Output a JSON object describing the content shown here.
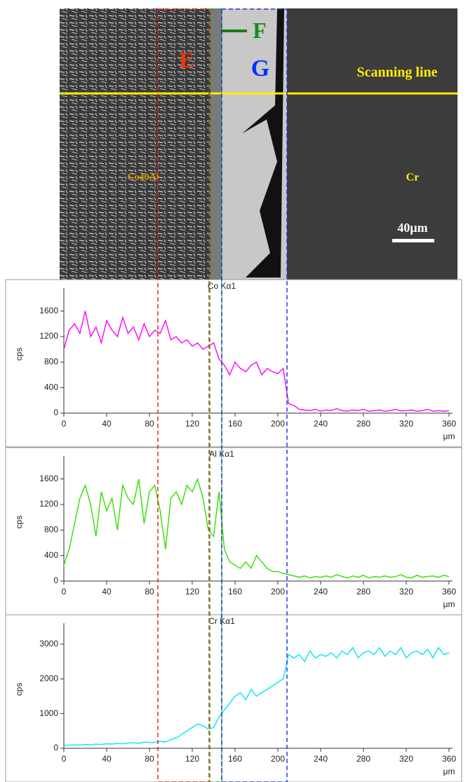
{
  "micrograph": {
    "labels": {
      "E": "E",
      "F": "F",
      "G": "G",
      "scan": "Scanning line",
      "alloy": "Co40Al",
      "cr": "Cr",
      "scale": "40μm"
    }
  },
  "chart_data": [
    {
      "type": "line",
      "title": "Co Kα1",
      "x_label": "μm",
      "y_label": "cps",
      "color": "#ff00ff",
      "x": [
        0,
        5,
        10,
        15,
        20,
        25,
        30,
        35,
        40,
        45,
        50,
        55,
        60,
        65,
        70,
        75,
        80,
        85,
        90,
        95,
        100,
        105,
        110,
        115,
        120,
        125,
        130,
        135,
        140,
        145,
        150,
        155,
        160,
        165,
        170,
        175,
        180,
        185,
        190,
        195,
        200,
        205,
        210,
        215,
        220,
        225,
        230,
        235,
        240,
        245,
        250,
        255,
        260,
        265,
        270,
        275,
        280,
        285,
        290,
        295,
        300,
        305,
        310,
        315,
        320,
        325,
        330,
        335,
        340,
        345,
        350,
        355,
        360
      ],
      "values": [
        1000,
        1300,
        1400,
        1250,
        1600,
        1200,
        1350,
        1100,
        1450,
        1300,
        1200,
        1500,
        1250,
        1350,
        1150,
        1400,
        1200,
        1300,
        1250,
        1450,
        1150,
        1200,
        1100,
        1150,
        1050,
        1100,
        1000,
        1050,
        1100,
        850,
        750,
        600,
        800,
        700,
        650,
        750,
        800,
        600,
        700,
        650,
        620,
        700,
        150,
        120,
        60,
        50,
        40,
        60,
        30,
        50,
        40,
        70,
        40,
        30,
        50,
        40,
        60,
        30,
        40,
        50,
        30,
        40,
        60,
        35,
        40,
        50,
        30,
        40,
        60,
        30,
        40,
        30,
        40
      ],
      "xlim": [
        0,
        360
      ],
      "ylim": [
        0,
        1850
      ],
      "xticks": [
        0,
        40,
        80,
        120,
        160,
        200,
        240,
        280,
        320,
        360
      ],
      "yticks": [
        0,
        400,
        800,
        1200,
        1600
      ]
    },
    {
      "type": "line",
      "title": "Al Kα1",
      "x_label": "μm",
      "y_label": "cps",
      "color": "#33dd00",
      "x": [
        0,
        5,
        10,
        15,
        20,
        25,
        30,
        35,
        40,
        45,
        50,
        55,
        60,
        65,
        70,
        75,
        80,
        85,
        90,
        95,
        100,
        105,
        110,
        115,
        120,
        125,
        130,
        135,
        140,
        145,
        150,
        155,
        160,
        165,
        170,
        175,
        180,
        185,
        190,
        195,
        200,
        205,
        210,
        215,
        220,
        225,
        230,
        235,
        240,
        245,
        250,
        255,
        260,
        265,
        270,
        275,
        280,
        285,
        290,
        295,
        300,
        305,
        310,
        315,
        320,
        325,
        330,
        335,
        340,
        345,
        350,
        355,
        360
      ],
      "values": [
        250,
        500,
        900,
        1300,
        1500,
        1200,
        700,
        1400,
        1100,
        1300,
        800,
        1500,
        1300,
        1200,
        1600,
        900,
        1400,
        1500,
        1100,
        500,
        1300,
        1400,
        1200,
        1500,
        1400,
        1600,
        1300,
        800,
        700,
        1400,
        500,
        300,
        250,
        200,
        300,
        200,
        400,
        300,
        200,
        150,
        150,
        120,
        100,
        80,
        60,
        80,
        50,
        70,
        60,
        80,
        60,
        100,
        70,
        50,
        80,
        60,
        90,
        50,
        70,
        60,
        80,
        60,
        70,
        100,
        60,
        50,
        90,
        60,
        70,
        80,
        60,
        90,
        70
      ],
      "xlim": [
        0,
        360
      ],
      "ylim": [
        0,
        1850
      ],
      "xticks": [
        0,
        40,
        80,
        120,
        160,
        200,
        240,
        280,
        320,
        360
      ],
      "yticks": [
        0,
        400,
        800,
        1200,
        1600
      ]
    },
    {
      "type": "line",
      "title": "Cr Kα1",
      "x_label": "μm",
      "y_label": "cps",
      "color": "#00e5ff",
      "x": [
        0,
        5,
        10,
        15,
        20,
        25,
        30,
        35,
        40,
        45,
        50,
        55,
        60,
        65,
        70,
        75,
        80,
        85,
        90,
        95,
        100,
        105,
        110,
        115,
        120,
        125,
        130,
        135,
        140,
        145,
        150,
        155,
        160,
        165,
        170,
        175,
        180,
        185,
        190,
        195,
        200,
        205,
        210,
        215,
        220,
        225,
        230,
        235,
        240,
        245,
        250,
        255,
        260,
        265,
        270,
        275,
        280,
        285,
        290,
        295,
        300,
        305,
        310,
        315,
        320,
        325,
        330,
        335,
        340,
        345,
        350,
        355,
        360
      ],
      "values": [
        80,
        90,
        100,
        90,
        110,
        100,
        120,
        110,
        130,
        120,
        140,
        130,
        150,
        160,
        140,
        180,
        160,
        170,
        200,
        180,
        250,
        300,
        400,
        500,
        600,
        700,
        650,
        550,
        600,
        900,
        1100,
        1300,
        1500,
        1600,
        1400,
        1700,
        1500,
        1600,
        1700,
        1800,
        1900,
        2000,
        2700,
        2600,
        2700,
        2500,
        2800,
        2600,
        2700,
        2650,
        2750,
        2600,
        2800,
        2700,
        2900,
        2600,
        2750,
        2800,
        2700,
        2900,
        2650,
        2800,
        2700,
        2900,
        2600,
        2750,
        2800,
        2700,
        2850,
        2600,
        2900,
        2700,
        2750
      ],
      "xlim": [
        0,
        360
      ],
      "ylim": [
        0,
        3400
      ],
      "xticks": [
        0,
        40,
        80,
        120,
        160,
        200,
        240,
        280,
        320,
        360
      ],
      "yticks": [
        0,
        1000,
        2000,
        3000
      ]
    }
  ]
}
